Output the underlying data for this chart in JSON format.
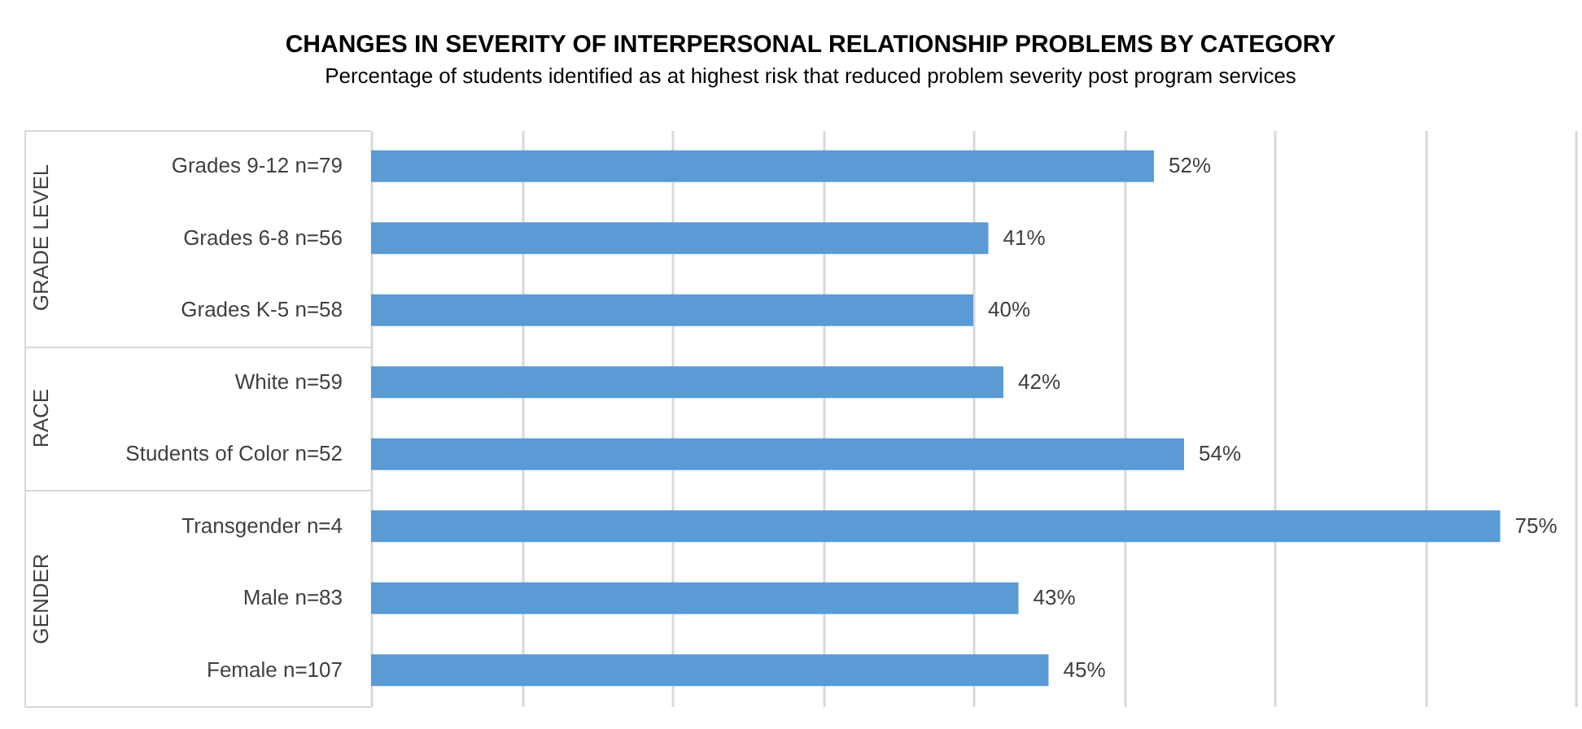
{
  "chart_data": {
    "type": "bar",
    "orientation": "horizontal",
    "title": "CHANGES IN SEVERITY OF INTERPERSONAL RELATIONSHIP PROBLEMS BY CATEGORY",
    "subtitle": "Percentage of students identified as at highest risk that reduced problem severity post program services",
    "categories": [
      "Grades 9-12 n=79",
      "Grades 6-8 n=56",
      "Grades K-5 n=58",
      "White n=59",
      "Students of Color n=52",
      "Transgender n=4",
      "Male n=83",
      "Female n=107"
    ],
    "values": [
      52,
      41,
      40,
      42,
      54,
      75,
      43,
      45
    ],
    "value_labels": [
      "52%",
      "41%",
      "40%",
      "42%",
      "54%",
      "75%",
      "43%",
      "45%"
    ],
    "color": "#5b9bd5",
    "xlim": [
      0,
      80
    ],
    "xticks": [
      {
        "value": 0,
        "label": null
      },
      {
        "value": 10,
        "label": null
      },
      {
        "value": 20,
        "label": null
      },
      {
        "value": 30,
        "label": null
      },
      {
        "value": 40,
        "label": null
      },
      {
        "value": 50,
        "label": null
      },
      {
        "value": 60,
        "label": null
      },
      {
        "value": 70,
        "label": null
      },
      {
        "value": 80,
        "label": null
      }
    ],
    "grid": "x",
    "tick_labels": "y",
    "annotations": [
      "GRADE LEVEL",
      "RACE",
      "GENDER"
    ]
  }
}
